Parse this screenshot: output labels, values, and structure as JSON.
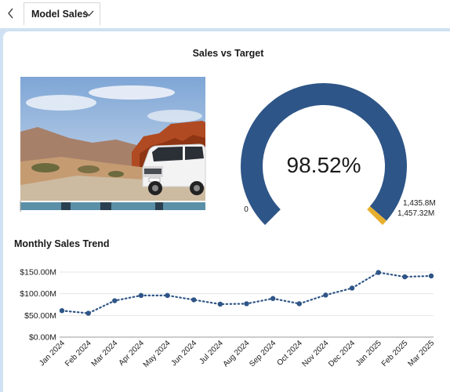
{
  "nav": {
    "back_icon": "chevron-left-icon",
    "tab_label": "Model Sales",
    "tab_dropdown_icon": "chevron-down-icon"
  },
  "gauge": {
    "title": "Sales vs Target",
    "value_text": "98.52%",
    "min_label": "0",
    "actual_label": "1,435.8M",
    "target_label": "1,457.32M",
    "actual": 1435.8,
    "target": 1457.32,
    "fill_color": "#2e5587",
    "target_color": "#e6b02e"
  },
  "photo": {
    "subject": "white SUV parked on desert road beside red rock formations"
  },
  "trend": {
    "title": "Monthly Sales Trend",
    "line_color": "#2e5587"
  },
  "chart_data": {
    "type": "line",
    "title": "Monthly Sales Trend",
    "xlabel": "",
    "ylabel": "",
    "categories": [
      "Jan 2024",
      "Feb 2024",
      "Mar 2024",
      "Apr 2024",
      "May 2024",
      "Jun 2024",
      "Jul 2024",
      "Aug 2024",
      "Sep 2024",
      "Oct 2024",
      "Nov 2024",
      "Dec 2024",
      "Jan 2025",
      "Feb 2025",
      "Mar 2025"
    ],
    "series": [
      {
        "values": [
          61,
          55,
          84,
          96,
          96,
          86,
          76,
          77,
          89,
          77,
          97,
          113,
          149,
          139,
          141
        ]
      }
    ],
    "y_unit": "$M",
    "ylim": [
      0,
      150
    ],
    "y_ticks": [
      "$0.00M",
      "$50.00M",
      "$100.00M",
      "$150.00M"
    ],
    "grid": true,
    "line_style": "dotted",
    "markers": true
  }
}
